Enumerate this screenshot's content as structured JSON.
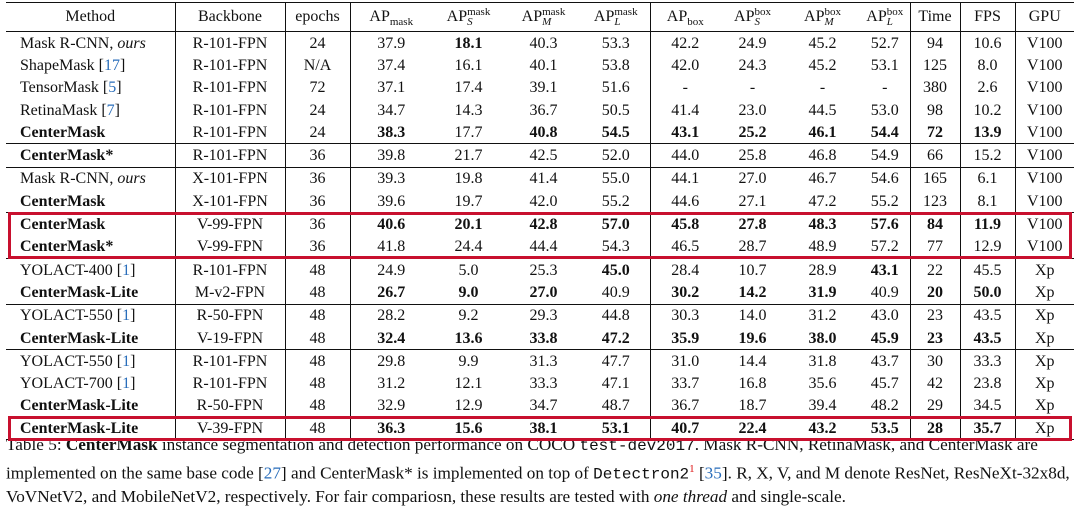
{
  "table": {
    "header": [
      {
        "base": "Method"
      },
      {
        "base": "Backbone"
      },
      {
        "base": "epochs"
      },
      {
        "base": "AP",
        "sup": "mask"
      },
      {
        "base": "AP",
        "sup": "mask",
        "sub": "S"
      },
      {
        "base": "AP",
        "sup": "mask",
        "sub": "M"
      },
      {
        "base": "AP",
        "sup": "mask",
        "sub": "L"
      },
      {
        "base": "AP",
        "sup": "box"
      },
      {
        "base": "AP",
        "sup": "box",
        "sub": "S"
      },
      {
        "base": "AP",
        "sup": "box",
        "sub": "M"
      },
      {
        "base": "AP",
        "sup": "box",
        "sub": "L"
      },
      {
        "base": "Time"
      },
      {
        "base": "FPS"
      },
      {
        "base": "GPU"
      }
    ],
    "rows": [
      {
        "cells": [
          [
            {
              "t": "Mask R-CNN, "
            },
            {
              "t": "ours",
              "style": "em"
            }
          ],
          "R-101-FPN",
          "24",
          "37.9",
          "18.1",
          "40.3",
          "53.3",
          "42.2",
          "24.9",
          "45.2",
          "52.7",
          "94",
          "10.6",
          "V100"
        ],
        "bold": [
          4
        ]
      },
      {
        "cells": [
          [
            {
              "t": "ShapeMask "
            },
            {
              "t": "[17]",
              "style": "cite"
            }
          ],
          "R-101-FPN",
          "N/A",
          "37.4",
          "16.1",
          "40.1",
          "53.8",
          "42.0",
          "24.3",
          "45.2",
          "53.1",
          "125",
          "8.0",
          "V100"
        ],
        "bold": []
      },
      {
        "cells": [
          [
            {
              "t": "TensorMask "
            },
            {
              "t": "[5]",
              "style": "cite"
            }
          ],
          "R-101-FPN",
          "72",
          "37.1",
          "17.4",
          "39.1",
          "51.6",
          "-",
          "-",
          "-",
          "-",
          "380",
          "2.6",
          "V100"
        ],
        "bold": []
      },
      {
        "cells": [
          [
            {
              "t": "RetinaMask "
            },
            {
              "t": "[7]",
              "style": "cite"
            }
          ],
          "R-101-FPN",
          "24",
          "34.7",
          "14.3",
          "36.7",
          "50.5",
          "41.4",
          "23.0",
          "44.5",
          "53.0",
          "98",
          "10.2",
          "V100"
        ],
        "bold": []
      },
      {
        "cells": [
          "CenterMask",
          "R-101-FPN",
          "24",
          "38.3",
          "17.7",
          "40.8",
          "54.5",
          "43.1",
          "25.2",
          "46.1",
          "54.4",
          "72",
          "13.9",
          "V100"
        ],
        "bold": [
          0,
          3,
          5,
          6,
          7,
          8,
          9,
          10,
          11,
          12
        ]
      },
      {
        "cells": [
          "CenterMask*",
          "R-101-FPN",
          "36",
          "39.8",
          "21.7",
          "42.5",
          "52.0",
          "44.0",
          "25.8",
          "46.8",
          "54.9",
          "66",
          "15.2",
          "V100"
        ],
        "bold": [
          0
        ]
      },
      {
        "cells": [
          [
            {
              "t": "Mask R-CNN, "
            },
            {
              "t": "ours",
              "style": "em"
            }
          ],
          "X-101-FPN",
          "36",
          "39.3",
          "19.8",
          "41.4",
          "55.0",
          "44.1",
          "27.0",
          "46.7",
          "54.6",
          "165",
          "6.1",
          "V100"
        ],
        "bold": []
      },
      {
        "cells": [
          "CenterMask",
          "X-101-FPN",
          "36",
          "39.6",
          "19.7",
          "42.0",
          "55.2",
          "44.6",
          "27.1",
          "47.2",
          "55.2",
          "123",
          "8.1",
          "V100"
        ],
        "bold": [
          0
        ]
      },
      {
        "cells": [
          "CenterMask",
          "V-99-FPN",
          "36",
          "40.6",
          "20.1",
          "42.8",
          "57.0",
          "45.8",
          "27.8",
          "48.3",
          "57.6",
          "84",
          "11.9",
          "V100"
        ],
        "bold": [
          0,
          3,
          4,
          5,
          6,
          7,
          8,
          9,
          10,
          11,
          12
        ]
      },
      {
        "cells": [
          "CenterMask*",
          "V-99-FPN",
          "36",
          "41.8",
          "24.4",
          "44.4",
          "54.3",
          "46.5",
          "28.7",
          "48.9",
          "57.2",
          "77",
          "12.9",
          "V100"
        ],
        "bold": [
          0
        ]
      },
      {
        "cells": [
          [
            {
              "t": "YOLACT-400 "
            },
            {
              "t": "[1]",
              "style": "cite"
            }
          ],
          "R-101-FPN",
          "48",
          "24.9",
          "5.0",
          "25.3",
          "45.0",
          "28.4",
          "10.7",
          "28.9",
          "43.1",
          "22",
          "45.5",
          "Xp"
        ],
        "bold": [
          6,
          10
        ]
      },
      {
        "cells": [
          "CenterMask-Lite",
          "M-v2-FPN",
          "48",
          "26.7",
          "9.0",
          "27.0",
          "40.9",
          "30.2",
          "14.2",
          "31.9",
          "40.9",
          "20",
          "50.0",
          "Xp"
        ],
        "bold": [
          0,
          3,
          4,
          5,
          7,
          8,
          9,
          11,
          12
        ]
      },
      {
        "cells": [
          [
            {
              "t": "YOLACT-550 "
            },
            {
              "t": "[1]",
              "style": "cite"
            }
          ],
          "R-50-FPN",
          "48",
          "28.2",
          "9.2",
          "29.3",
          "44.8",
          "30.3",
          "14.0",
          "31.2",
          "43.0",
          "23",
          "43.5",
          "Xp"
        ],
        "bold": []
      },
      {
        "cells": [
          "CenterMask-Lite",
          "V-19-FPN",
          "48",
          "32.4",
          "13.6",
          "33.8",
          "47.2",
          "35.9",
          "19.6",
          "38.0",
          "45.9",
          "23",
          "43.5",
          "Xp"
        ],
        "bold": [
          0,
          3,
          4,
          5,
          6,
          7,
          8,
          9,
          10,
          11,
          12
        ]
      },
      {
        "cells": [
          [
            {
              "t": "YOLACT-550 "
            },
            {
              "t": "[1]",
              "style": "cite"
            }
          ],
          "R-101-FPN",
          "48",
          "29.8",
          "9.9",
          "31.3",
          "47.7",
          "31.0",
          "14.4",
          "31.8",
          "43.7",
          "30",
          "33.3",
          "Xp"
        ],
        "bold": []
      },
      {
        "cells": [
          [
            {
              "t": "YOLACT-700 "
            },
            {
              "t": "[1]",
              "style": "cite"
            }
          ],
          "R-101-FPN",
          "48",
          "31.2",
          "12.1",
          "33.3",
          "47.1",
          "33.7",
          "16.8",
          "35.6",
          "45.7",
          "42",
          "23.8",
          "Xp"
        ],
        "bold": []
      },
      {
        "cells": [
          "CenterMask-Lite",
          "R-50-FPN",
          "48",
          "32.9",
          "12.9",
          "34.7",
          "48.7",
          "36.7",
          "18.7",
          "39.4",
          "48.2",
          "29",
          "34.5",
          "Xp"
        ],
        "bold": [
          0
        ]
      },
      {
        "cells": [
          "CenterMask-Lite",
          "V-39-FPN",
          "48",
          "36.3",
          "15.6",
          "38.1",
          "53.1",
          "40.7",
          "22.4",
          "43.2",
          "53.5",
          "28",
          "35.7",
          "Xp"
        ],
        "bold": [
          0,
          3,
          4,
          5,
          6,
          7,
          8,
          9,
          10,
          11,
          12
        ]
      }
    ],
    "group_ends": [
      4,
      5,
      7,
      9,
      11,
      13
    ],
    "highlight_rows": [
      [
        8,
        9
      ],
      [
        17,
        17
      ]
    ],
    "highlight_color": "#c8102e",
    "caption": [
      {
        "t": "Table 5: "
      },
      {
        "t": "CenterMask",
        "style": "b"
      },
      {
        "t": " instance segmentation and detection performance on COCO "
      },
      {
        "t": "test-dev2017",
        "style": "mono"
      },
      {
        "t": ". Mask R-CNN, RetinaMask, and CenterMask are implemented on the same base code "
      },
      {
        "t": "[27]",
        "style": "cite"
      },
      {
        "t": " and CenterMask* is implemented on top of "
      },
      {
        "t": "Detectron2",
        "style": "mono"
      },
      {
        "t": "1",
        "style": "fn"
      },
      {
        "t": " "
      },
      {
        "t": "[35]",
        "style": "cite"
      },
      {
        "t": ". R, X, V, and M denote ResNet, ResNeXt-32x8d, VoVNetV2, and MobileNetV2, respectively. For fair compariosn, these results are tested with "
      },
      {
        "t": "one thread",
        "style": "em"
      },
      {
        "t": " and single-scale."
      }
    ]
  }
}
